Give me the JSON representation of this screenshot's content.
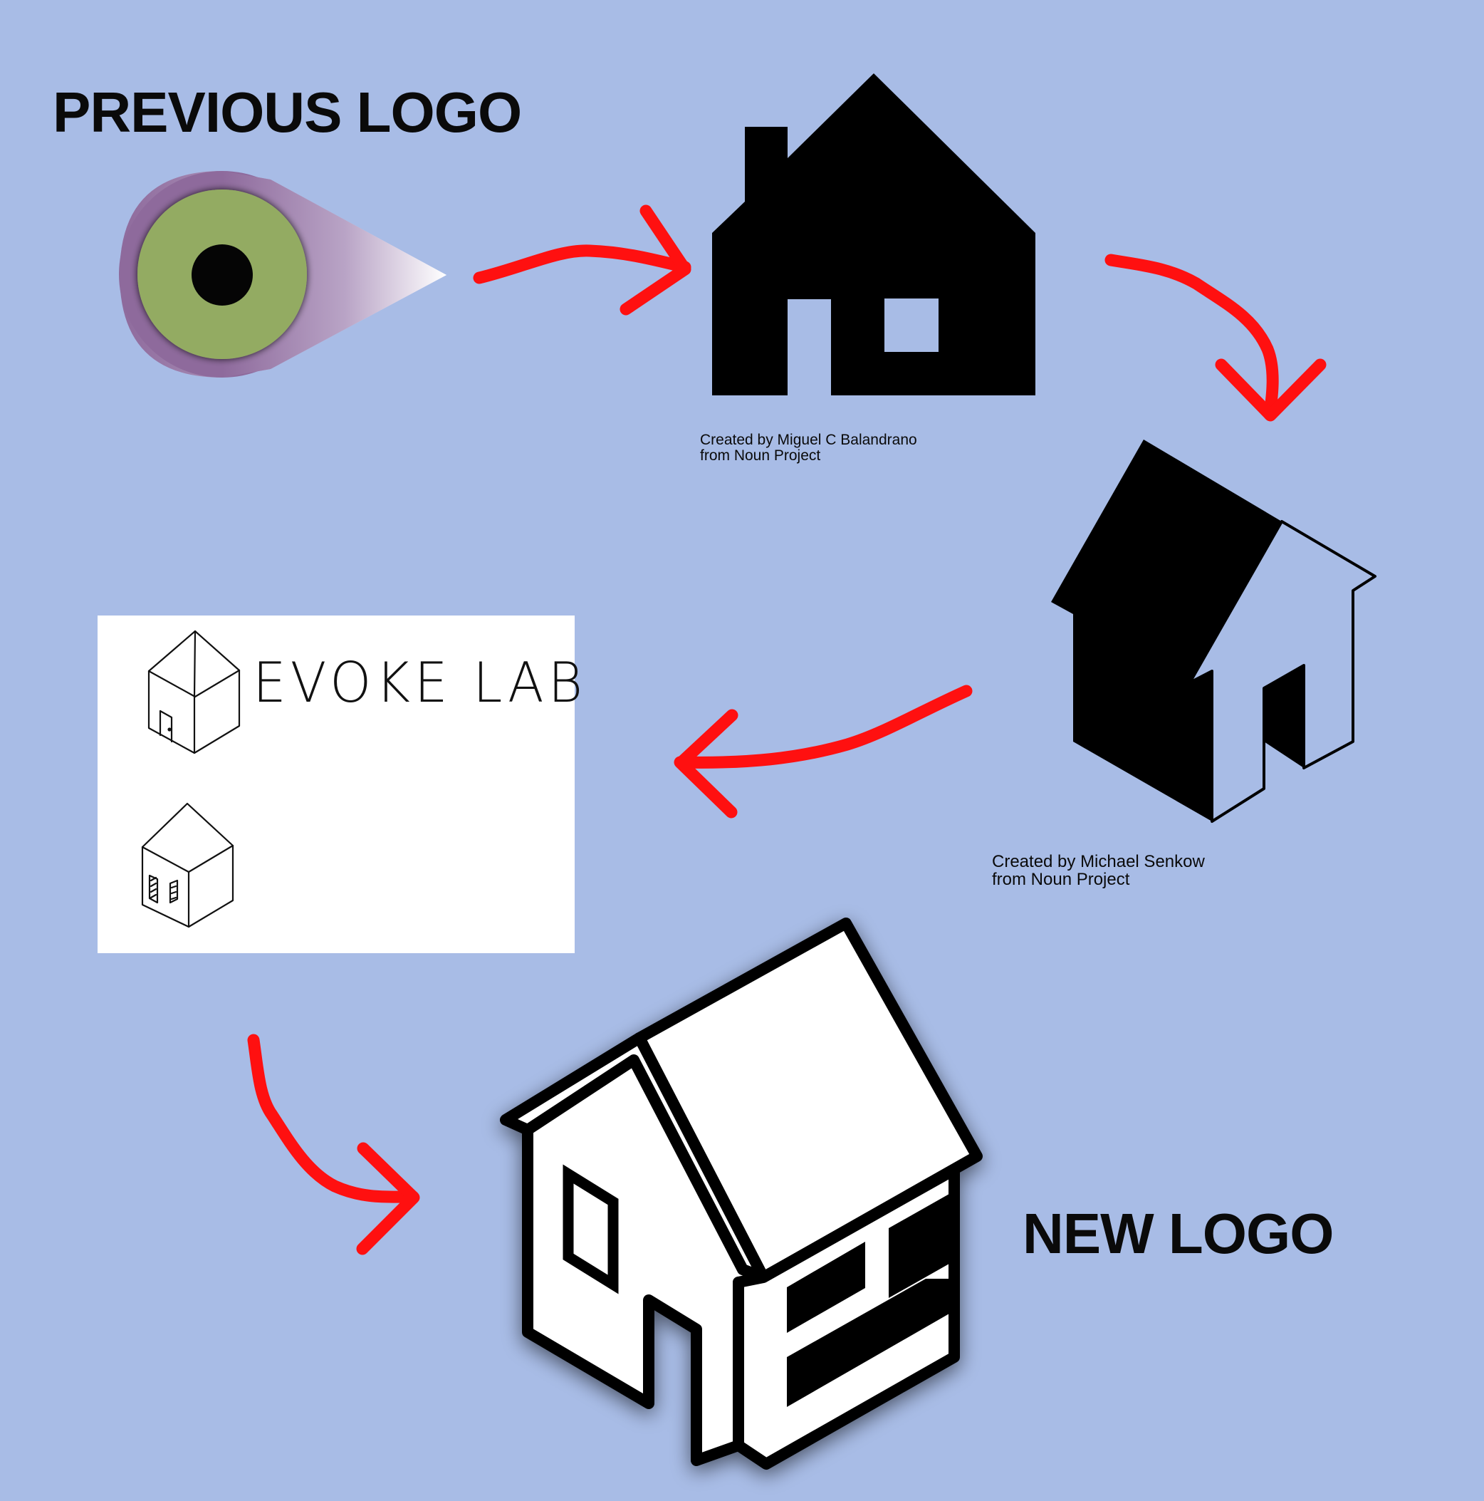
{
  "headings": {
    "previous": "PREVIOUS LOGO",
    "new": "NEW LOGO"
  },
  "credits": {
    "house1": {
      "line1": "Created by Miguel C Balandrano",
      "line2": "from Noun Project"
    },
    "house2": {
      "line1": "Created by Michael Senkow",
      "line2": "from Noun Project"
    }
  },
  "sketch": {
    "handwritten_text": "EVOKE LAB"
  },
  "colors": {
    "background": "#a8bce6",
    "arrow": "#ff1010",
    "ink": "#000000",
    "eye_iris": "#93ab62",
    "eye_glow": "#8e6a9c"
  },
  "icons": [
    "eye-logo-icon",
    "house-silhouette-icon",
    "isometric-house-icon",
    "isometric-house-sketch-icon",
    "new-logo-house-icon",
    "arrow-icon"
  ]
}
